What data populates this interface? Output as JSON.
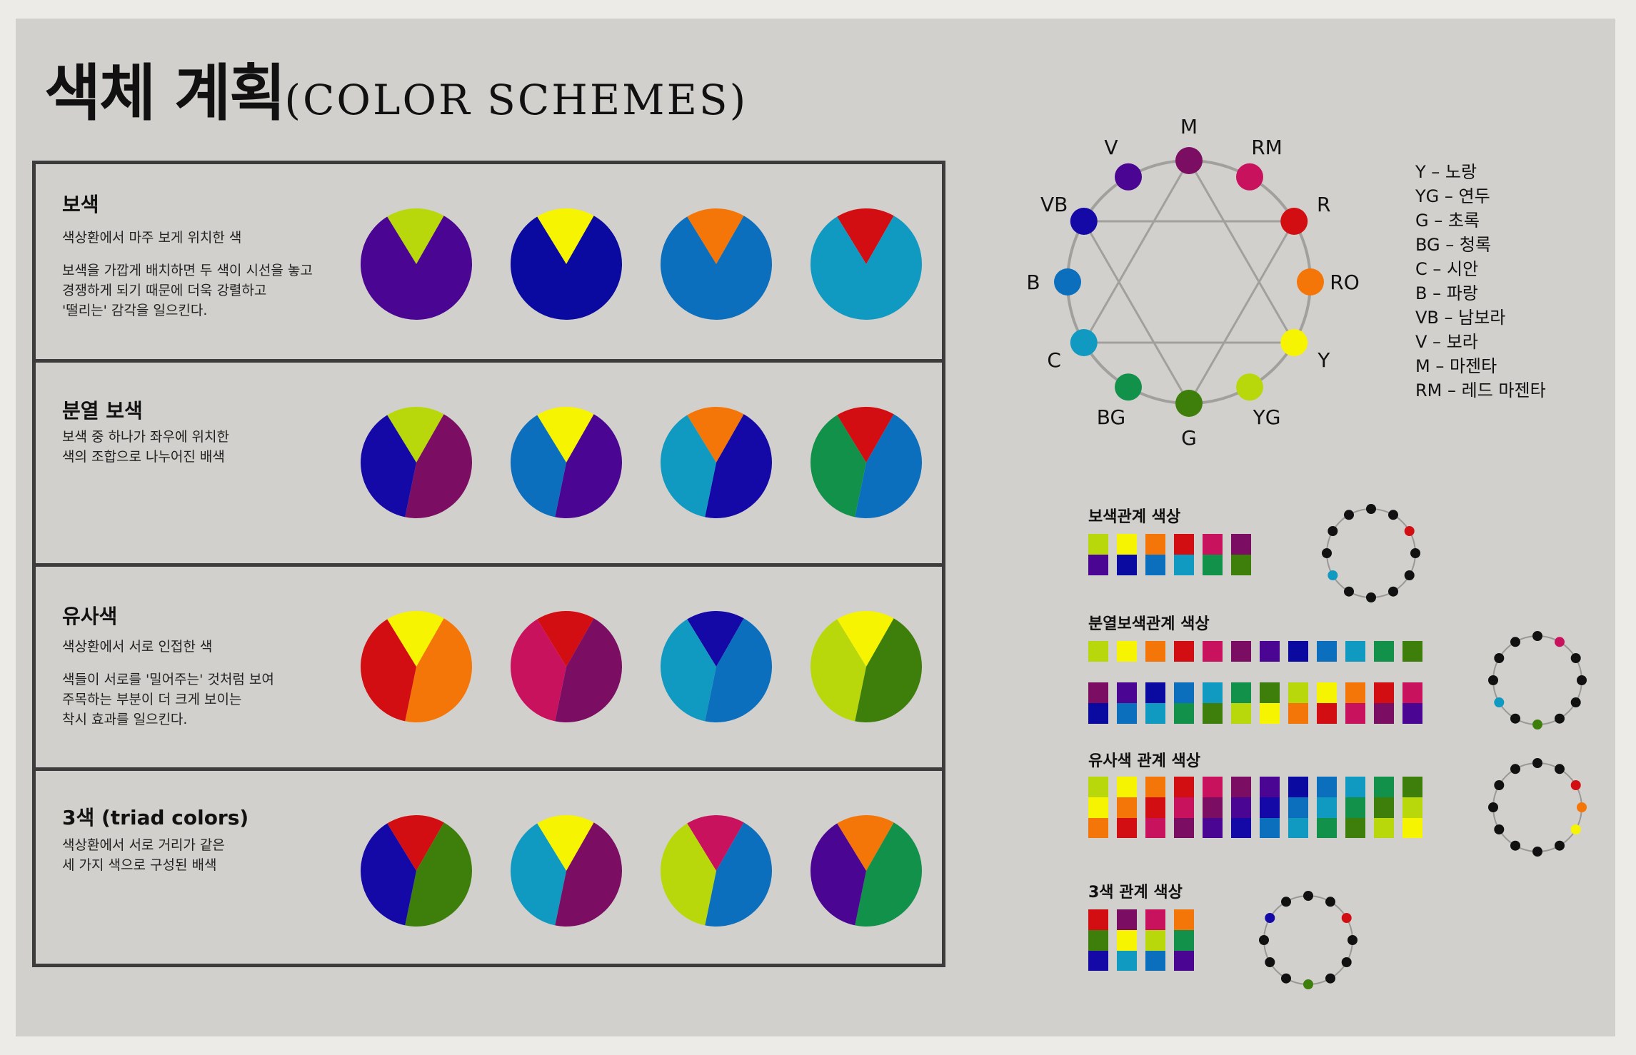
{
  "title": {
    "ko": "색체 계획",
    "en": "(COLOR  SCHEMES)"
  },
  "colors": {
    "M": "#7b0e63",
    "RM": "#c9125e",
    "R": "#d30e12",
    "RO": "#f57608",
    "Y": "#f6f400",
    "YG": "#b8d80c",
    "G": "#3e7f0c",
    "BG": "#12914a",
    "C": "#119ac1",
    "B": "#0b6fbe",
    "VB": "#1409a6",
    "V": "#4a0592",
    "NB": "#0a09a0",
    "RB": "#12108e"
  },
  "schemes": [
    {
      "title": "보색",
      "desc": [
        "색상환에서 마주 보게 위치한 색",
        "",
        "보색을 가깝게 배치하면 두 색이 시선을 놓고",
        "경쟁하게 되기 때문에 더욱 강렬하고",
        " '떨리는' 감각을  일으킨다."
      ],
      "pies": [
        [
          {
            "c": "YG",
            "v": 0.17
          },
          {
            "c": "V",
            "v": 0.83
          }
        ],
        [
          {
            "c": "Y",
            "v": 0.17
          },
          {
            "c": "NB",
            "v": 0.83
          }
        ],
        [
          {
            "c": "RO",
            "v": 0.17
          },
          {
            "c": "B",
            "v": 0.83
          }
        ],
        [
          {
            "c": "R",
            "v": 0.17
          },
          {
            "c": "C",
            "v": 0.83
          }
        ]
      ]
    },
    {
      "title": "분열 보색",
      "desc": [
        "보색 중 하나가 좌우에 위치한",
        "색의 조합으로 나누어진 배색"
      ],
      "pies": [
        [
          {
            "c": "YG",
            "v": 0.17
          },
          {
            "c": "M",
            "v": 0.45
          },
          {
            "c": "VB",
            "v": 0.38
          }
        ],
        [
          {
            "c": "Y",
            "v": 0.17
          },
          {
            "c": "V",
            "v": 0.45
          },
          {
            "c": "B",
            "v": 0.38
          }
        ],
        [
          {
            "c": "RO",
            "v": 0.17
          },
          {
            "c": "VB",
            "v": 0.45
          },
          {
            "c": "C",
            "v": 0.38
          }
        ],
        [
          {
            "c": "R",
            "v": 0.17
          },
          {
            "c": "B",
            "v": 0.45
          },
          {
            "c": "BG",
            "v": 0.38
          }
        ]
      ]
    },
    {
      "title": "유사색",
      "desc": [
        "색상환에서 서로 인접한 색",
        "",
        "색들이 서로를 '밀어주는' 것처럼 보여",
        "주목하는 부분이 더 크게 보이는",
        "착시 효과를 일으킨다."
      ],
      "pies": [
        [
          {
            "c": "Y",
            "v": 0.17
          },
          {
            "c": "RO",
            "v": 0.45
          },
          {
            "c": "R",
            "v": 0.38
          }
        ],
        [
          {
            "c": "R",
            "v": 0.17
          },
          {
            "c": "M",
            "v": 0.45
          },
          {
            "c": "RM",
            "v": 0.38
          }
        ],
        [
          {
            "c": "VB",
            "v": 0.17
          },
          {
            "c": "B",
            "v": 0.45
          },
          {
            "c": "C",
            "v": 0.38
          }
        ],
        [
          {
            "c": "Y",
            "v": 0.17
          },
          {
            "c": "G",
            "v": 0.45
          },
          {
            "c": "YG",
            "v": 0.38
          }
        ]
      ]
    },
    {
      "title": "3색 (triad colors)",
      "desc": [
        "색상환에서 서로 거리가 같은",
        "세 가지 색으로 구성된 배색"
      ],
      "pies": [
        [
          {
            "c": "R",
            "v": 0.17
          },
          {
            "c": "G",
            "v": 0.45
          },
          {
            "c": "VB",
            "v": 0.38
          }
        ],
        [
          {
            "c": "Y",
            "v": 0.17
          },
          {
            "c": "M",
            "v": 0.45
          },
          {
            "c": "C",
            "v": 0.38
          }
        ],
        [
          {
            "c": "RM",
            "v": 0.17
          },
          {
            "c": "B",
            "v": 0.45
          },
          {
            "c": "YG",
            "v": 0.38
          }
        ],
        [
          {
            "c": "RO",
            "v": 0.17
          },
          {
            "c": "BG",
            "v": 0.45
          },
          {
            "c": "V",
            "v": 0.38
          }
        ]
      ]
    }
  ],
  "wheel": [
    {
      "label": "M",
      "c": "M"
    },
    {
      "label": "RM",
      "c": "RM"
    },
    {
      "label": "R",
      "c": "R"
    },
    {
      "label": "RO",
      "c": "RO"
    },
    {
      "label": "Y",
      "c": "Y"
    },
    {
      "label": "YG",
      "c": "YG"
    },
    {
      "label": "G",
      "c": "G"
    },
    {
      "label": "BG",
      "c": "BG"
    },
    {
      "label": "C",
      "c": "C"
    },
    {
      "label": "B",
      "c": "B"
    },
    {
      "label": "VB",
      "c": "VB"
    },
    {
      "label": "V",
      "c": "V"
    }
  ],
  "legend": [
    "Y – 노랑",
    "YG – 연두",
    "G – 초록",
    "BG – 청록",
    "C – 시안",
    "B – 파랑",
    "VB – 남보라",
    "V – 보라",
    "M – 마젠타",
    "RM – 레드 마젠타"
  ],
  "relations": [
    {
      "label": "보색관계 색상",
      "grid": [
        [
          "YG",
          "Y",
          "RO",
          "R",
          "RM",
          "M"
        ],
        [
          "V",
          "NB",
          "B",
          "C",
          "BG",
          "G"
        ]
      ],
      "mini": {
        "R": 2,
        "C": 8
      }
    },
    {
      "label": "분열보색관계 색상",
      "grid": [
        [
          "YG",
          "Y",
          "RO",
          "R",
          "RM",
          "M",
          "V",
          "NB",
          "B",
          "C",
          "BG",
          "G"
        ]
      ],
      "grid2": [
        [
          "M",
          "V",
          "NB",
          "B",
          "C",
          "BG",
          "G",
          "YG",
          "Y",
          "RO",
          "R",
          "RM"
        ],
        [
          "NB",
          "B",
          "C",
          "BG",
          "G",
          "YG",
          "Y",
          "RO",
          "R",
          "RM",
          "M",
          "V"
        ]
      ],
      "mini": {
        "RM": 1,
        "C": 8,
        "G": 6
      }
    },
    {
      "label": "유사색 관계 색상",
      "grid": [
        [
          "YG",
          "Y",
          "RO",
          "R",
          "RM",
          "M",
          "V",
          "NB",
          "B",
          "C",
          "BG",
          "G"
        ],
        [
          "Y",
          "RO",
          "R",
          "RM",
          "M",
          "V",
          "VB",
          "B",
          "C",
          "BG",
          "G",
          "YG"
        ],
        [
          "RO",
          "R",
          "RM",
          "M",
          "V",
          "VB",
          "B",
          "C",
          "BG",
          "G",
          "YG",
          "Y"
        ]
      ],
      "mini": {
        "R": 2,
        "RO": 3,
        "Y": 4
      }
    },
    {
      "label": "3색 관계 색상",
      "grid": [
        [
          "R",
          "M",
          "RM",
          "RO"
        ],
        [
          "G",
          "Y",
          "YG",
          "BG"
        ],
        [
          "VB",
          "C",
          "B",
          "V"
        ]
      ],
      "mini": {
        "R": 2,
        "G": 6,
        "VB": 10
      }
    }
  ]
}
